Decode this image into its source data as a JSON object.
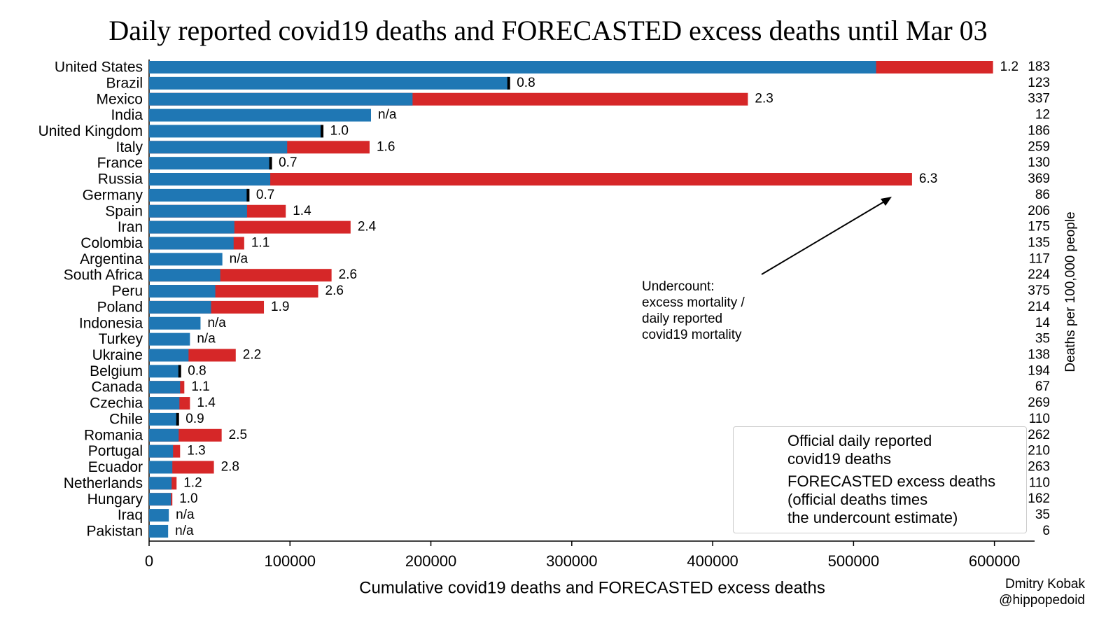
{
  "chart_data": {
    "type": "bar",
    "orientation": "horizontal",
    "title": "Daily reported covid19 deaths and FORECASTED excess deaths until Mar 03",
    "xlabel": "Cumulative covid19 deaths and FORECASTED excess deaths",
    "categories": [
      "United States",
      "Brazil",
      "Mexico",
      "India",
      "United Kingdom",
      "Italy",
      "France",
      "Russia",
      "Germany",
      "Spain",
      "Iran",
      "Colombia",
      "Argentina",
      "South Africa",
      "Peru",
      "Poland",
      "Indonesia",
      "Turkey",
      "Ukraine",
      "Belgium",
      "Canada",
      "Czechia",
      "Chile",
      "Romania",
      "Portugal",
      "Ecuador",
      "Netherlands",
      "Hungary",
      "Iraq",
      "Pakistan"
    ],
    "series": [
      {
        "name": "FORECASTED excess deaths\n(official deaths times\nthe undercount estimate)",
        "color": "#d62728",
        "values": [
          599000,
          null,
          425000,
          null,
          null,
          156500,
          null,
          541500,
          null,
          97000,
          143000,
          67500,
          null,
          129500,
          120000,
          81500,
          null,
          null,
          61500,
          null,
          25000,
          29000,
          null,
          51500,
          22000,
          46000,
          19500,
          16500,
          null,
          null
        ]
      },
      {
        "name": "Official daily reported\ncovid19 deaths",
        "color": "#1f77b4",
        "values": [
          516000,
          255000,
          187000,
          157500,
          122500,
          98000,
          86000,
          86000,
          70000,
          69500,
          60500,
          60000,
          52000,
          50500,
          47000,
          44000,
          36500,
          29000,
          28000,
          21500,
          22000,
          21500,
          20000,
          21000,
          17000,
          16500,
          16000,
          15500,
          14000,
          13500
        ]
      }
    ],
    "undercount": {
      "values": [
        1.2,
        0.8,
        2.3,
        null,
        1.0,
        1.6,
        0.7,
        6.3,
        0.7,
        1.4,
        2.4,
        1.1,
        null,
        2.6,
        2.6,
        1.9,
        null,
        null,
        2.2,
        0.8,
        1.1,
        1.4,
        0.9,
        2.5,
        1.3,
        2.8,
        1.2,
        1.0,
        null,
        null
      ],
      "value_labels": [
        "1.2",
        "0.8",
        "2.3",
        "n/a",
        "1.0",
        "1.6",
        "0.7",
        "6.3",
        "0.7",
        "1.4",
        "2.4",
        "1.1",
        "n/a",
        "2.6",
        "2.6",
        "1.9",
        "n/a",
        "n/a",
        "2.2",
        "0.8",
        "1.1",
        "1.4",
        "0.9",
        "2.5",
        "1.3",
        "2.8",
        "1.2",
        "1.0",
        "n/a",
        "n/a"
      ],
      "na_color": "#e31a1c",
      "marker_color": "#000000"
    },
    "per100k": {
      "label": "Deaths per 100,000 people",
      "values": [
        183,
        123,
        337,
        12,
        186,
        259,
        130,
        369,
        86,
        206,
        175,
        135,
        117,
        224,
        375,
        214,
        14,
        35,
        138,
        194,
        67,
        269,
        110,
        262,
        210,
        263,
        110,
        162,
        35,
        6
      ],
      "color": "#d62728",
      "na_color": "#4a86b8"
    },
    "annotation": "Undercount:\nexcess mortality /\ndaily reported\ncovid19 mortality",
    "credits": [
      "Dmitry Kobak",
      "@hippopedoid"
    ],
    "xlim": [
      0,
      628500
    ],
    "xticks": [
      0,
      100000,
      200000,
      300000,
      400000,
      500000,
      600000
    ],
    "legend": "lower right"
  }
}
